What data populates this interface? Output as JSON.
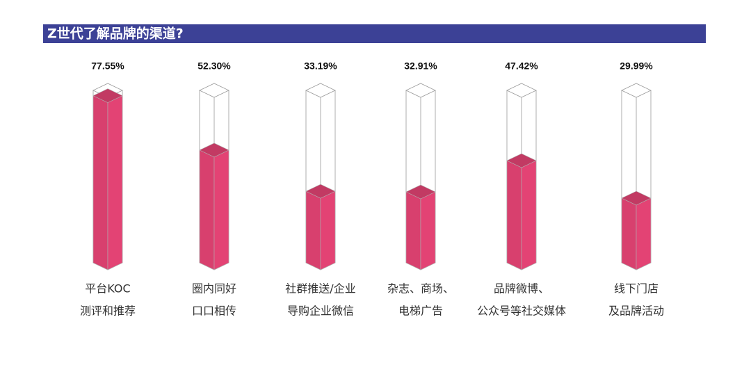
{
  "chart_data": {
    "type": "prism-bar",
    "title": "Z世代了解品牌的渠道?",
    "categories": [
      [
        "平台KOC",
        "测评和推荐"
      ],
      [
        "圈内同好",
        "口口相传"
      ],
      [
        "社群推送/企业",
        "导购企业微信"
      ],
      [
        "杂志、商场、",
        "电梯广告"
      ],
      [
        "品牌微博、",
        "公众号等社交媒体"
      ],
      [
        "线下门店",
        "及品牌活动"
      ]
    ],
    "values": [
      77.55,
      52.3,
      33.19,
      32.91,
      47.42,
      29.99
    ],
    "value_labels": [
      "77.55%",
      "52.30%",
      "33.19%",
      "32.91%",
      "47.42%",
      "29.99%"
    ],
    "color": "#d8406e",
    "ylim": [
      0,
      80
    ]
  }
}
